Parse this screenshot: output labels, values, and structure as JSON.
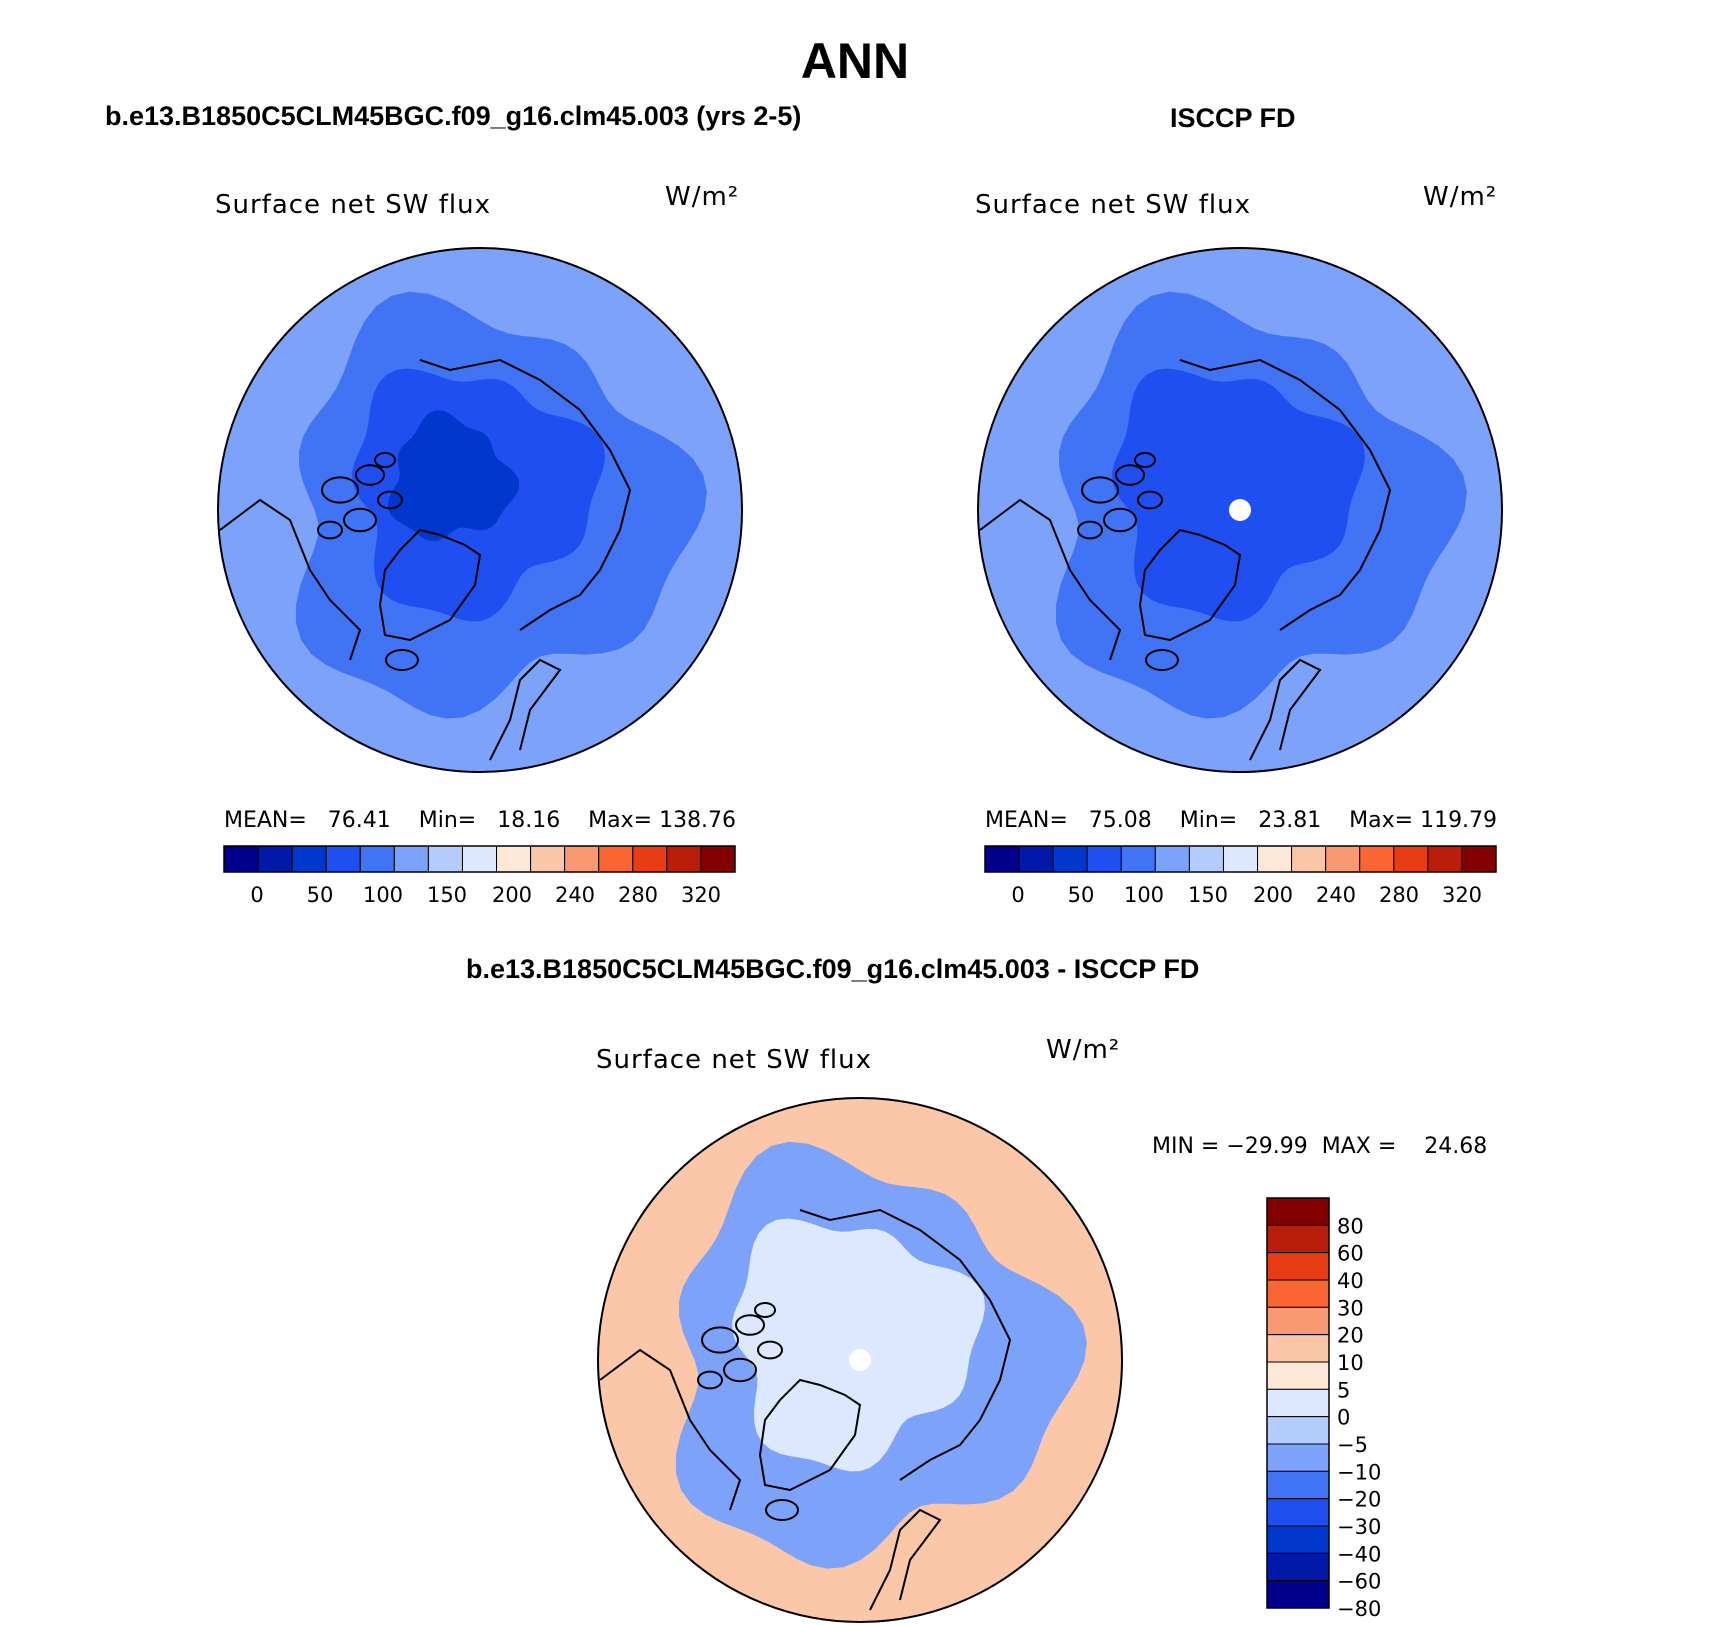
{
  "title": "ANN",
  "colors": {
    "cmap12": [
      "#00008c",
      "#0019a8",
      "#0037cc",
      "#1f4ff0",
      "#4173f5",
      "#7da2fa",
      "#b4ccfc",
      "#dbe8fd",
      "#fde7d6",
      "#fcc6a9",
      "#f99973",
      "#fa6534",
      "#e83d14",
      "#b91e0a",
      "#820000"
    ],
    "diff": [
      "#00008c",
      "#0019a8",
      "#0037cc",
      "#1f4ff0",
      "#4173f5",
      "#7da2fa",
      "#b4ccfc",
      "#dbe8fd",
      "#fde7d6",
      "#fcc6a9",
      "#f99973",
      "#fa6534",
      "#e83d14",
      "#b91e0a",
      "#820000"
    ]
  },
  "panels": {
    "model": {
      "case_title": "b.e13.B1850C5CLM45BGC.f09_g16.clm45.003 (yrs 2-5)",
      "variable": "Surface net SW flux",
      "units": "W/m²",
      "stats": "MEAN=   76.41    Min=   18.16    Max= 138.76",
      "ticks": [
        "0",
        "50",
        "100",
        "150",
        "200",
        "240",
        "280",
        "320"
      ]
    },
    "obs": {
      "case_title": "ISCCP FD",
      "variable": "Surface net SW flux",
      "units": "W/m²",
      "stats": "MEAN=   75.08    Min=   23.81    Max= 119.79",
      "ticks": [
        "0",
        "50",
        "100",
        "150",
        "200",
        "240",
        "280",
        "320"
      ]
    },
    "diff": {
      "case_title": "b.e13.B1850C5CLM45BGC.f09_g16.clm45.003 - ISCCP FD",
      "variable": "Surface net SW flux",
      "units": "W/m²",
      "stats": "MIN = −29.99  MAX =    24.68",
      "ticks": [
        "80",
        "60",
        "40",
        "30",
        "20",
        "10",
        "5",
        "0",
        "−5",
        "−10",
        "−20",
        "−30",
        "−40",
        "−60",
        "−80"
      ]
    }
  },
  "chart_data": [
    {
      "type": "heatmap",
      "title": "b.e13.B1850C5CLM45BGC.f09_g16.clm45.003 (yrs 2-5)",
      "variable": "Surface net SW flux",
      "units": "W/m²",
      "projection": "north polar stereographic",
      "mean": 76.41,
      "min": 18.16,
      "max": 138.76,
      "colorbar_levels": [
        0,
        25,
        50,
        75,
        100,
        125,
        150,
        175,
        200,
        220,
        240,
        260,
        280,
        300,
        320
      ],
      "field_levels": {
        "pole": 25,
        "arctic_ocean": 50,
        "subpolar": 75,
        "rim": 100
      }
    },
    {
      "type": "heatmap",
      "title": "ISCCP FD",
      "variable": "Surface net SW flux",
      "units": "W/m²",
      "projection": "north polar stereographic",
      "mean": 75.08,
      "min": 23.81,
      "max": 119.79,
      "colorbar_levels": [
        0,
        25,
        50,
        75,
        100,
        125,
        150,
        175,
        200,
        220,
        240,
        260,
        280,
        300,
        320
      ],
      "field_levels": {
        "arctic_ocean": 50,
        "subpolar": 75,
        "rim": 100
      },
      "missing_at_pole": true
    },
    {
      "type": "heatmap",
      "title": "b.e13.B1850C5CLM45BGC.f09_g16.clm45.003 - ISCCP FD",
      "variable": "Surface net SW flux",
      "units": "W/m²",
      "projection": "north polar stereographic",
      "min": -29.99,
      "max": 24.68,
      "colorbar_levels": [
        -80,
        -60,
        -40,
        -30,
        -20,
        -10,
        -5,
        0,
        5,
        10,
        20,
        30,
        40,
        60,
        80
      ],
      "field_levels": {
        "central_arctic": -2.5,
        "canadian_archipelago": -15,
        "rim": 7.5
      },
      "missing_at_pole": true
    }
  ]
}
